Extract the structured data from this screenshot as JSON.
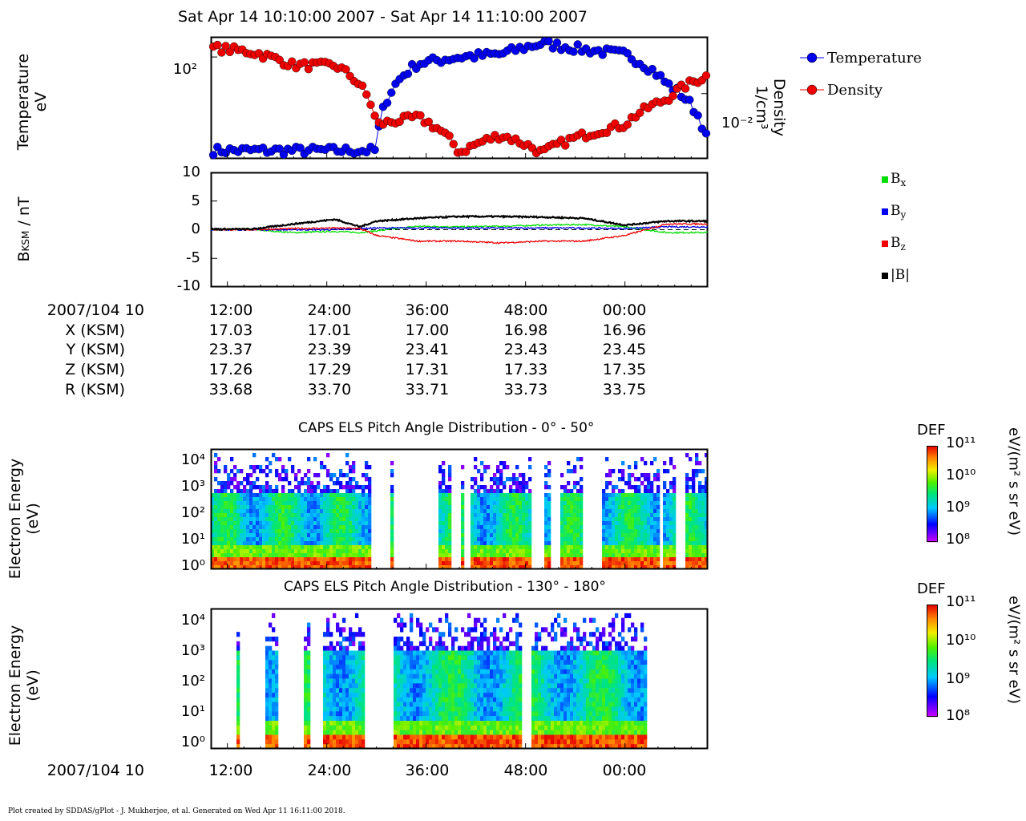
{
  "header": {
    "title": "Sat Apr 14 10:10:00 2007 - Sat Apr 14 11:10:00 2007"
  },
  "footer": {
    "text": "Plot created by SDDAS/gPlot - J. Mukherjee, et al.  Generated on Wed Apr 11 16:11:00 2018."
  },
  "panel1": {
    "ylabel_line1": "Temperature",
    "ylabel_line2": "eV",
    "ylabel_right_line1": "Density",
    "ylabel_right_line2": "1/cm³",
    "left_tick": "10²",
    "right_tick": "10⁻²",
    "legend": [
      {
        "name": "Temperature",
        "color": "#0000ee"
      },
      {
        "name": "Density",
        "color": "#ee0000"
      }
    ]
  },
  "panel2": {
    "ylabel": "B",
    "ylabel_sub": "KSM",
    "ylabel_tail": " / nT",
    "yticks": [
      "10",
      "5",
      "0",
      "-5",
      "-10"
    ],
    "legend": [
      {
        "label": "B",
        "sub": "x",
        "color": "#00dd00"
      },
      {
        "label": "B",
        "sub": "y",
        "color": "#0000ee"
      },
      {
        "label": "B",
        "sub": "z",
        "color": "#ee0000"
      },
      {
        "label": "|B|",
        "sub": "",
        "color": "#000000"
      }
    ]
  },
  "ephemeris": {
    "row_labels": [
      "2007/104 10",
      "X (KSM)",
      "Y (KSM)",
      "Z (KSM)",
      "R (KSM)"
    ],
    "times": [
      "12:00",
      "24:00",
      "36:00",
      "48:00",
      "00:00"
    ],
    "X": [
      "17.03",
      "17.01",
      "17.00",
      "16.98",
      "16.96"
    ],
    "Y": [
      "23.37",
      "23.39",
      "23.41",
      "23.43",
      "23.45"
    ],
    "Z": [
      "17.26",
      "17.29",
      "17.31",
      "17.33",
      "17.35"
    ],
    "R": [
      "33.68",
      "33.70",
      "33.71",
      "33.73",
      "33.75"
    ]
  },
  "panel3": {
    "title": "CAPS ELS Pitch Angle Distribution - 0° - 50°",
    "ylabel_line1": "Electron Energy",
    "ylabel_line2": "(eV)",
    "yticks": [
      "10⁴",
      "10³",
      "10²",
      "10¹",
      "10⁰"
    ],
    "cbar_title": "DEF",
    "cbar_ticks": [
      "10¹¹",
      "10¹⁰",
      "10⁹",
      "10⁸"
    ],
    "cbar_unit": "eV/(m² s sr eV)"
  },
  "panel4": {
    "title": "CAPS ELS Pitch Angle Distribution - 130° - 180°",
    "ylabel_line1": "Electron Energy",
    "ylabel_line2": "(eV)",
    "yticks": [
      "10⁴",
      "10³",
      "10²",
      "10¹",
      "10⁰"
    ],
    "cbar_title": "DEF",
    "cbar_ticks": [
      "10¹¹",
      "10¹⁰",
      "10⁹",
      "10⁸"
    ],
    "cbar_unit": "eV/(m² s sr eV)",
    "xlabel_date": "2007/104 10",
    "xticks": [
      "12:00",
      "24:00",
      "36:00",
      "48:00",
      "00:00"
    ]
  },
  "chart_data": [
    {
      "type": "scatter",
      "title": "Sat Apr 14 10:10:00 2007 - Sat Apr 14 11:10:00 2007",
      "xlabel": "",
      "ylabel": "Temperature eV",
      "y2label": "Density 1/cm³",
      "log_scale": true,
      "x_minutes": [
        0,
        5,
        10,
        15,
        20,
        25,
        30,
        35,
        40,
        45,
        50,
        55,
        60
      ],
      "series": [
        {
          "name": "Temperature",
          "color": "#0000ee",
          "values": [
            4,
            4,
            4,
            4,
            4,
            80,
            100,
            110,
            160,
            130,
            110,
            40,
            5
          ]
        },
        {
          "name": "Density",
          "color": "#ee0000",
          "values": [
            0.06,
            0.05,
            0.03,
            0.03,
            0.003,
            0.004,
            0.001,
            0.002,
            0.001,
            0.002,
            0.003,
            0.008,
            0.02
          ]
        }
      ]
    },
    {
      "type": "line",
      "ylabel": "B_KSM / nT",
      "ylim": [
        -10,
        10
      ],
      "x_minutes": [
        0,
        5,
        10,
        15,
        18,
        20,
        25,
        30,
        35,
        40,
        45,
        50,
        55,
        60
      ],
      "series": [
        {
          "name": "Bx",
          "color": "#00dd00",
          "values": [
            0,
            0,
            -0.5,
            -0.3,
            -0.5,
            -0.2,
            0.6,
            0.5,
            0.6,
            0.8,
            0.9,
            0.5,
            -0.5,
            -0.5
          ]
        },
        {
          "name": "By",
          "color": "#0000ee",
          "values": [
            0,
            0,
            0,
            0,
            0.2,
            0.3,
            0.3,
            0.3,
            0.3,
            0.3,
            0.3,
            0.2,
            0.5,
            0.5
          ]
        },
        {
          "name": "Bz",
          "color": "#ee0000",
          "values": [
            0,
            0,
            0.2,
            0.3,
            0.2,
            -1,
            -2,
            -2,
            -2.3,
            -2,
            -2,
            -1,
            1,
            1
          ]
        },
        {
          "name": "|B|",
          "color": "#000000",
          "values": [
            0.1,
            0.1,
            1,
            1.8,
            0.5,
            1.5,
            2,
            2.3,
            2.3,
            2.2,
            2,
            0.8,
            1.5,
            1.5
          ]
        }
      ]
    },
    {
      "type": "heatmap",
      "title": "CAPS ELS Pitch Angle Distribution - 0° - 50°",
      "ylabel": "Electron Energy (eV)",
      "y_log_range": [
        1,
        20000
      ],
      "colorbar": {
        "label": "DEF eV/(m² s sr eV)",
        "range": [
          100000000.0,
          100000000000.0
        ]
      },
      "gaps_minutes": [
        [
          19.5,
          21.5
        ],
        [
          22,
          27.6
        ],
        [
          29,
          30.2
        ],
        [
          30.7,
          31.3
        ],
        [
          38.6,
          40.2
        ],
        [
          41.2,
          42
        ],
        [
          45,
          47.3
        ],
        [
          54.3,
          54.6
        ],
        [
          56.3,
          57.4
        ]
      ]
    },
    {
      "type": "heatmap",
      "title": "CAPS ELS Pitch Angle Distribution - 130° - 180°",
      "ylabel": "Electron Energy (eV)",
      "y_log_range": [
        1,
        20000
      ],
      "colorbar": {
        "label": "DEF eV/(m² s sr eV)",
        "range": [
          100000000.0,
          100000000000.0
        ]
      },
      "gaps_minutes": [
        [
          0,
          3
        ],
        [
          3.5,
          6.6
        ],
        [
          8,
          11.1
        ],
        [
          12,
          13.4
        ],
        [
          18.6,
          22.1
        ],
        [
          37.6,
          38.8
        ],
        [
          52.8,
          60
        ]
      ]
    }
  ]
}
